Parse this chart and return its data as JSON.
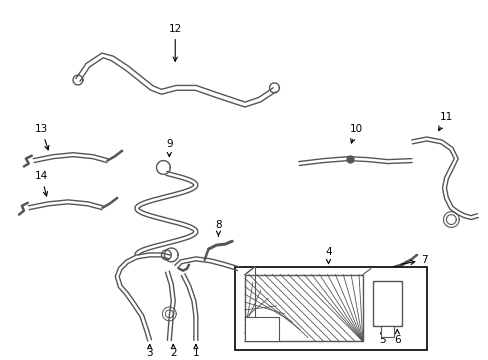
{
  "bg_color": "#ffffff",
  "line_color": "#555555",
  "lw": 1.0,
  "lw_thick": 1.8,
  "fs": 7.5
}
